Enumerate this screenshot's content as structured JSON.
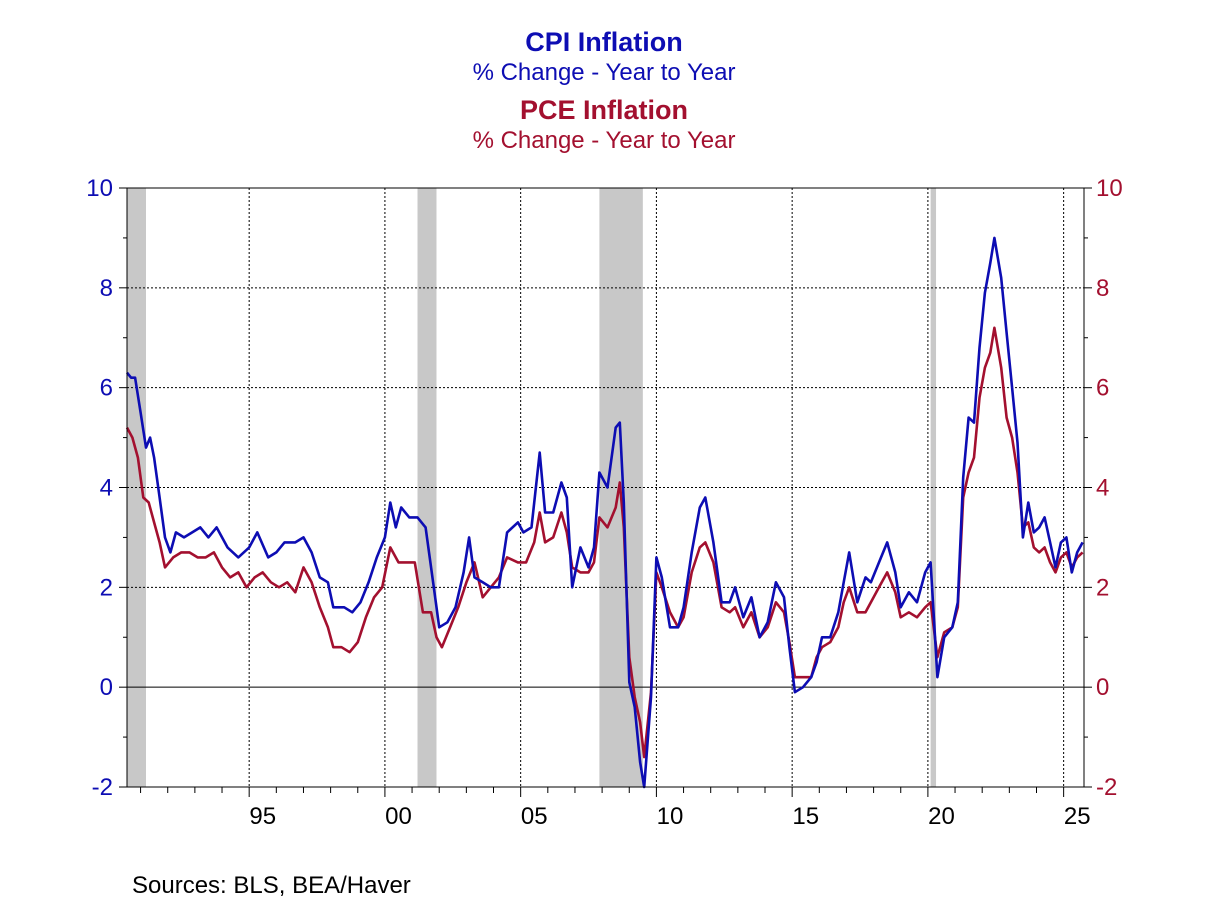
{
  "titles": {
    "cpi_title": "CPI Inflation",
    "cpi_subtitle": "% Change - Year to Year",
    "pce_title": "PCE Inflation",
    "pce_subtitle": "% Change - Year to Year"
  },
  "source": "Sources:  BLS, BEA/Haver",
  "colors": {
    "cpi": "#0d0db3",
    "pce": "#a3102f",
    "recession": "#c8c8c8",
    "axis": "#000000"
  },
  "chart_data": {
    "type": "line",
    "title": "CPI Inflation / PCE Inflation",
    "subtitle": "% Change - Year to Year",
    "xlim": [
      1990.5,
      2025.75
    ],
    "ylim": [
      -2,
      10
    ],
    "y_ticks_left": [
      "10",
      "8",
      "6",
      "4",
      "2",
      "0",
      "-2"
    ],
    "y_ticks_right": [
      "10",
      "8",
      "6",
      "4",
      "2",
      "0",
      "-2"
    ],
    "y_tick_values": [
      10,
      8,
      6,
      4,
      2,
      0,
      -2
    ],
    "x_ticks": [
      {
        "label": "95",
        "year": 1995
      },
      {
        "label": "00",
        "year": 2000
      },
      {
        "label": "05",
        "year": 2005
      },
      {
        "label": "10",
        "year": 2010
      },
      {
        "label": "15",
        "year": 2015
      },
      {
        "label": "20",
        "year": 2020
      },
      {
        "label": "25",
        "year": 2025
      }
    ],
    "recessions": [
      [
        1990.5,
        1991.2
      ],
      [
        2001.2,
        2001.9
      ],
      [
        2007.9,
        2009.5
      ],
      [
        2020.1,
        2020.3
      ]
    ],
    "grid": "dotted",
    "series": [
      {
        "name": "CPI Inflation",
        "color": "#0d0db3",
        "points": [
          [
            1990.5,
            6.3
          ],
          [
            1990.65,
            6.2
          ],
          [
            1990.8,
            6.2
          ],
          [
            1991.0,
            5.5
          ],
          [
            1991.2,
            4.8
          ],
          [
            1991.35,
            5.0
          ],
          [
            1991.5,
            4.6
          ],
          [
            1991.7,
            3.8
          ],
          [
            1991.9,
            3.0
          ],
          [
            1992.1,
            2.7
          ],
          [
            1992.3,
            3.1
          ],
          [
            1992.6,
            3.0
          ],
          [
            1992.9,
            3.1
          ],
          [
            1993.2,
            3.2
          ],
          [
            1993.5,
            3.0
          ],
          [
            1993.8,
            3.2
          ],
          [
            1994.2,
            2.8
          ],
          [
            1994.6,
            2.6
          ],
          [
            1995.0,
            2.8
          ],
          [
            1995.3,
            3.1
          ],
          [
            1995.7,
            2.6
          ],
          [
            1996.0,
            2.7
          ],
          [
            1996.3,
            2.9
          ],
          [
            1996.7,
            2.9
          ],
          [
            1997.0,
            3.0
          ],
          [
            1997.3,
            2.7
          ],
          [
            1997.6,
            2.2
          ],
          [
            1997.9,
            2.1
          ],
          [
            1998.1,
            1.6
          ],
          [
            1998.5,
            1.6
          ],
          [
            1998.8,
            1.5
          ],
          [
            1999.1,
            1.7
          ],
          [
            1999.4,
            2.1
          ],
          [
            1999.7,
            2.6
          ],
          [
            2000.0,
            3.0
          ],
          [
            2000.2,
            3.7
          ],
          [
            2000.4,
            3.2
          ],
          [
            2000.6,
            3.6
          ],
          [
            2000.9,
            3.4
          ],
          [
            2001.2,
            3.4
          ],
          [
            2001.5,
            3.2
          ],
          [
            2001.8,
            2.0
          ],
          [
            2002.0,
            1.2
          ],
          [
            2002.3,
            1.3
          ],
          [
            2002.6,
            1.6
          ],
          [
            2002.9,
            2.3
          ],
          [
            2003.1,
            3.0
          ],
          [
            2003.3,
            2.2
          ],
          [
            2003.6,
            2.1
          ],
          [
            2003.9,
            2.0
          ],
          [
            2004.2,
            2.0
          ],
          [
            2004.5,
            3.1
          ],
          [
            2004.9,
            3.3
          ],
          [
            2005.1,
            3.1
          ],
          [
            2005.4,
            3.2
          ],
          [
            2005.7,
            4.7
          ],
          [
            2005.9,
            3.5
          ],
          [
            2006.2,
            3.5
          ],
          [
            2006.5,
            4.1
          ],
          [
            2006.7,
            3.8
          ],
          [
            2006.9,
            2.0
          ],
          [
            2007.2,
            2.8
          ],
          [
            2007.5,
            2.4
          ],
          [
            2007.7,
            2.8
          ],
          [
            2007.9,
            4.3
          ],
          [
            2008.2,
            4.0
          ],
          [
            2008.5,
            5.2
          ],
          [
            2008.65,
            5.3
          ],
          [
            2008.8,
            3.7
          ],
          [
            2009.0,
            0.1
          ],
          [
            2009.2,
            -0.4
          ],
          [
            2009.4,
            -1.5
          ],
          [
            2009.55,
            -2.0
          ],
          [
            2009.8,
            -0.2
          ],
          [
            2010.0,
            2.6
          ],
          [
            2010.2,
            2.2
          ],
          [
            2010.5,
            1.2
          ],
          [
            2010.8,
            1.2
          ],
          [
            2011.0,
            1.6
          ],
          [
            2011.3,
            2.7
          ],
          [
            2011.6,
            3.6
          ],
          [
            2011.8,
            3.8
          ],
          [
            2012.1,
            2.9
          ],
          [
            2012.4,
            1.7
          ],
          [
            2012.7,
            1.7
          ],
          [
            2012.9,
            2.0
          ],
          [
            2013.2,
            1.4
          ],
          [
            2013.5,
            1.8
          ],
          [
            2013.8,
            1.0
          ],
          [
            2014.1,
            1.3
          ],
          [
            2014.4,
            2.1
          ],
          [
            2014.7,
            1.8
          ],
          [
            2014.9,
            0.8
          ],
          [
            2015.1,
            -0.1
          ],
          [
            2015.4,
            0.0
          ],
          [
            2015.7,
            0.2
          ],
          [
            2015.9,
            0.5
          ],
          [
            2016.1,
            1.0
          ],
          [
            2016.4,
            1.0
          ],
          [
            2016.7,
            1.5
          ],
          [
            2016.9,
            2.1
          ],
          [
            2017.1,
            2.7
          ],
          [
            2017.4,
            1.7
          ],
          [
            2017.7,
            2.2
          ],
          [
            2017.9,
            2.1
          ],
          [
            2018.2,
            2.5
          ],
          [
            2018.5,
            2.9
          ],
          [
            2018.8,
            2.3
          ],
          [
            2019.0,
            1.6
          ],
          [
            2019.3,
            1.9
          ],
          [
            2019.6,
            1.7
          ],
          [
            2019.9,
            2.3
          ],
          [
            2020.1,
            2.5
          ],
          [
            2020.35,
            0.2
          ],
          [
            2020.6,
            1.0
          ],
          [
            2020.9,
            1.2
          ],
          [
            2021.1,
            1.7
          ],
          [
            2021.3,
            4.2
          ],
          [
            2021.5,
            5.4
          ],
          [
            2021.7,
            5.3
          ],
          [
            2021.9,
            6.8
          ],
          [
            2022.1,
            7.9
          ],
          [
            2022.3,
            8.5
          ],
          [
            2022.45,
            9.0
          ],
          [
            2022.7,
            8.2
          ],
          [
            2022.9,
            7.1
          ],
          [
            2023.1,
            6.0
          ],
          [
            2023.3,
            4.9
          ],
          [
            2023.5,
            3.0
          ],
          [
            2023.7,
            3.7
          ],
          [
            2023.9,
            3.1
          ],
          [
            2024.1,
            3.2
          ],
          [
            2024.3,
            3.4
          ],
          [
            2024.5,
            2.9
          ],
          [
            2024.7,
            2.4
          ],
          [
            2024.9,
            2.9
          ],
          [
            2025.1,
            3.0
          ],
          [
            2025.3,
            2.3
          ],
          [
            2025.5,
            2.7
          ],
          [
            2025.7,
            2.9
          ]
        ]
      },
      {
        "name": "PCE Inflation",
        "color": "#a3102f",
        "points": [
          [
            1990.5,
            5.2
          ],
          [
            1990.7,
            5.0
          ],
          [
            1990.9,
            4.6
          ],
          [
            1991.1,
            3.8
          ],
          [
            1991.3,
            3.7
          ],
          [
            1991.5,
            3.3
          ],
          [
            1991.7,
            2.9
          ],
          [
            1991.9,
            2.4
          ],
          [
            1992.2,
            2.6
          ],
          [
            1992.5,
            2.7
          ],
          [
            1992.8,
            2.7
          ],
          [
            1993.1,
            2.6
          ],
          [
            1993.4,
            2.6
          ],
          [
            1993.7,
            2.7
          ],
          [
            1994.0,
            2.4
          ],
          [
            1994.3,
            2.2
          ],
          [
            1994.6,
            2.3
          ],
          [
            1994.9,
            2.0
          ],
          [
            1995.2,
            2.2
          ],
          [
            1995.5,
            2.3
          ],
          [
            1995.8,
            2.1
          ],
          [
            1996.1,
            2.0
          ],
          [
            1996.4,
            2.1
          ],
          [
            1996.7,
            1.9
          ],
          [
            1997.0,
            2.4
          ],
          [
            1997.3,
            2.1
          ],
          [
            1997.6,
            1.6
          ],
          [
            1997.9,
            1.2
          ],
          [
            1998.1,
            0.8
          ],
          [
            1998.4,
            0.8
          ],
          [
            1998.7,
            0.7
          ],
          [
            1999.0,
            0.9
          ],
          [
            1999.3,
            1.4
          ],
          [
            1999.6,
            1.8
          ],
          [
            1999.9,
            2.0
          ],
          [
            2000.2,
            2.8
          ],
          [
            2000.5,
            2.5
          ],
          [
            2000.8,
            2.5
          ],
          [
            2001.1,
            2.5
          ],
          [
            2001.4,
            1.5
          ],
          [
            2001.7,
            1.5
          ],
          [
            2001.9,
            1.0
          ],
          [
            2002.1,
            0.8
          ],
          [
            2002.4,
            1.2
          ],
          [
            2002.7,
            1.6
          ],
          [
            2003.0,
            2.1
          ],
          [
            2003.3,
            2.5
          ],
          [
            2003.6,
            1.8
          ],
          [
            2003.9,
            2.0
          ],
          [
            2004.2,
            2.2
          ],
          [
            2004.5,
            2.6
          ],
          [
            2004.9,
            2.5
          ],
          [
            2005.2,
            2.5
          ],
          [
            2005.5,
            2.9
          ],
          [
            2005.7,
            3.5
          ],
          [
            2005.9,
            2.9
          ],
          [
            2006.2,
            3.0
          ],
          [
            2006.5,
            3.5
          ],
          [
            2006.7,
            3.1
          ],
          [
            2006.9,
            2.4
          ],
          [
            2007.2,
            2.3
          ],
          [
            2007.5,
            2.3
          ],
          [
            2007.7,
            2.5
          ],
          [
            2007.9,
            3.4
          ],
          [
            2008.2,
            3.2
          ],
          [
            2008.5,
            3.6
          ],
          [
            2008.65,
            4.1
          ],
          [
            2008.8,
            3.2
          ],
          [
            2009.0,
            0.6
          ],
          [
            2009.2,
            -0.2
          ],
          [
            2009.4,
            -0.7
          ],
          [
            2009.55,
            -1.4
          ],
          [
            2009.8,
            -0.1
          ],
          [
            2010.0,
            2.3
          ],
          [
            2010.2,
            2.0
          ],
          [
            2010.5,
            1.5
          ],
          [
            2010.8,
            1.2
          ],
          [
            2011.0,
            1.4
          ],
          [
            2011.3,
            2.3
          ],
          [
            2011.6,
            2.8
          ],
          [
            2011.8,
            2.9
          ],
          [
            2012.1,
            2.5
          ],
          [
            2012.4,
            1.6
          ],
          [
            2012.7,
            1.5
          ],
          [
            2012.9,
            1.6
          ],
          [
            2013.2,
            1.2
          ],
          [
            2013.5,
            1.5
          ],
          [
            2013.8,
            1.0
          ],
          [
            2014.1,
            1.2
          ],
          [
            2014.4,
            1.7
          ],
          [
            2014.7,
            1.5
          ],
          [
            2014.9,
            0.9
          ],
          [
            2015.1,
            0.2
          ],
          [
            2015.4,
            0.2
          ],
          [
            2015.7,
            0.2
          ],
          [
            2015.9,
            0.6
          ],
          [
            2016.1,
            0.8
          ],
          [
            2016.4,
            0.9
          ],
          [
            2016.7,
            1.2
          ],
          [
            2016.9,
            1.7
          ],
          [
            2017.1,
            2.0
          ],
          [
            2017.4,
            1.5
          ],
          [
            2017.7,
            1.5
          ],
          [
            2017.9,
            1.7
          ],
          [
            2018.2,
            2.0
          ],
          [
            2018.5,
            2.3
          ],
          [
            2018.8,
            1.9
          ],
          [
            2019.0,
            1.4
          ],
          [
            2019.3,
            1.5
          ],
          [
            2019.6,
            1.4
          ],
          [
            2019.9,
            1.6
          ],
          [
            2020.1,
            1.7
          ],
          [
            2020.35,
            0.6
          ],
          [
            2020.6,
            1.1
          ],
          [
            2020.9,
            1.2
          ],
          [
            2021.1,
            1.6
          ],
          [
            2021.3,
            3.8
          ],
          [
            2021.5,
            4.3
          ],
          [
            2021.7,
            4.6
          ],
          [
            2021.9,
            5.8
          ],
          [
            2022.1,
            6.4
          ],
          [
            2022.3,
            6.7
          ],
          [
            2022.45,
            7.2
          ],
          [
            2022.7,
            6.4
          ],
          [
            2022.9,
            5.4
          ],
          [
            2023.1,
            5.0
          ],
          [
            2023.3,
            4.3
          ],
          [
            2023.5,
            3.2
          ],
          [
            2023.7,
            3.3
          ],
          [
            2023.9,
            2.8
          ],
          [
            2024.1,
            2.7
          ],
          [
            2024.3,
            2.8
          ],
          [
            2024.5,
            2.5
          ],
          [
            2024.7,
            2.3
          ],
          [
            2024.9,
            2.6
          ],
          [
            2025.1,
            2.7
          ],
          [
            2025.3,
            2.4
          ],
          [
            2025.5,
            2.6
          ],
          [
            2025.7,
            2.7
          ]
        ]
      }
    ]
  }
}
